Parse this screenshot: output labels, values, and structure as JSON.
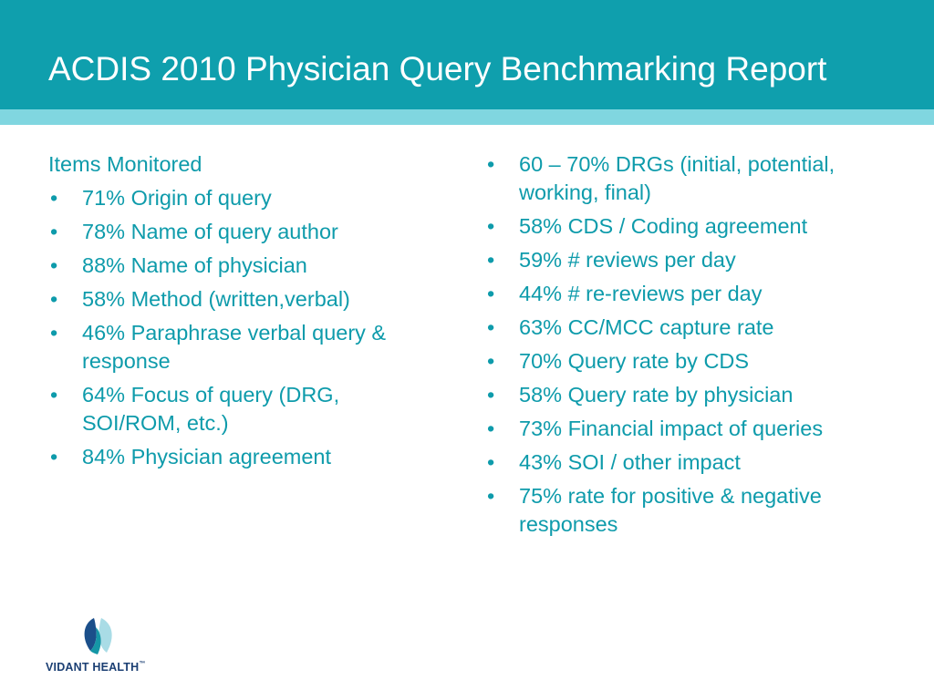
{
  "slide": {
    "title": "ACDIS 2010 Physician Query Benchmarking Report"
  },
  "left_column": {
    "heading": "Items Monitored",
    "items": [
      "71% Origin of query",
      "78% Name of query author",
      "88% Name of physician",
      "58% Method (written,verbal)",
      "46% Paraphrase verbal query & response",
      "64% Focus of query (DRG, SOI/ROM, etc.)",
      "84% Physician agreement"
    ]
  },
  "right_column": {
    "items": [
      "60 – 70% DRGs (initial, potential, working, final)",
      "58% CDS / Coding agreement",
      "59% # reviews per day",
      "44% # re-reviews per day",
      "63% CC/MCC capture rate",
      "70% Query rate by CDS",
      "58% Query rate by physician",
      "73% Financial impact of queries",
      "43% SOI / other impact",
      "75% rate for positive & negative responses"
    ]
  },
  "bullet_char": "•",
  "logo": {
    "text": "VIDANT HEALTH",
    "trademark": "™",
    "icon": "leaf-logo-icon"
  },
  "colors": {
    "header_teal": "#0f9fad",
    "header_stripe": "#80d6e0",
    "text_teal": "#0e9bab",
    "logo_navy": "#1b3f73"
  }
}
